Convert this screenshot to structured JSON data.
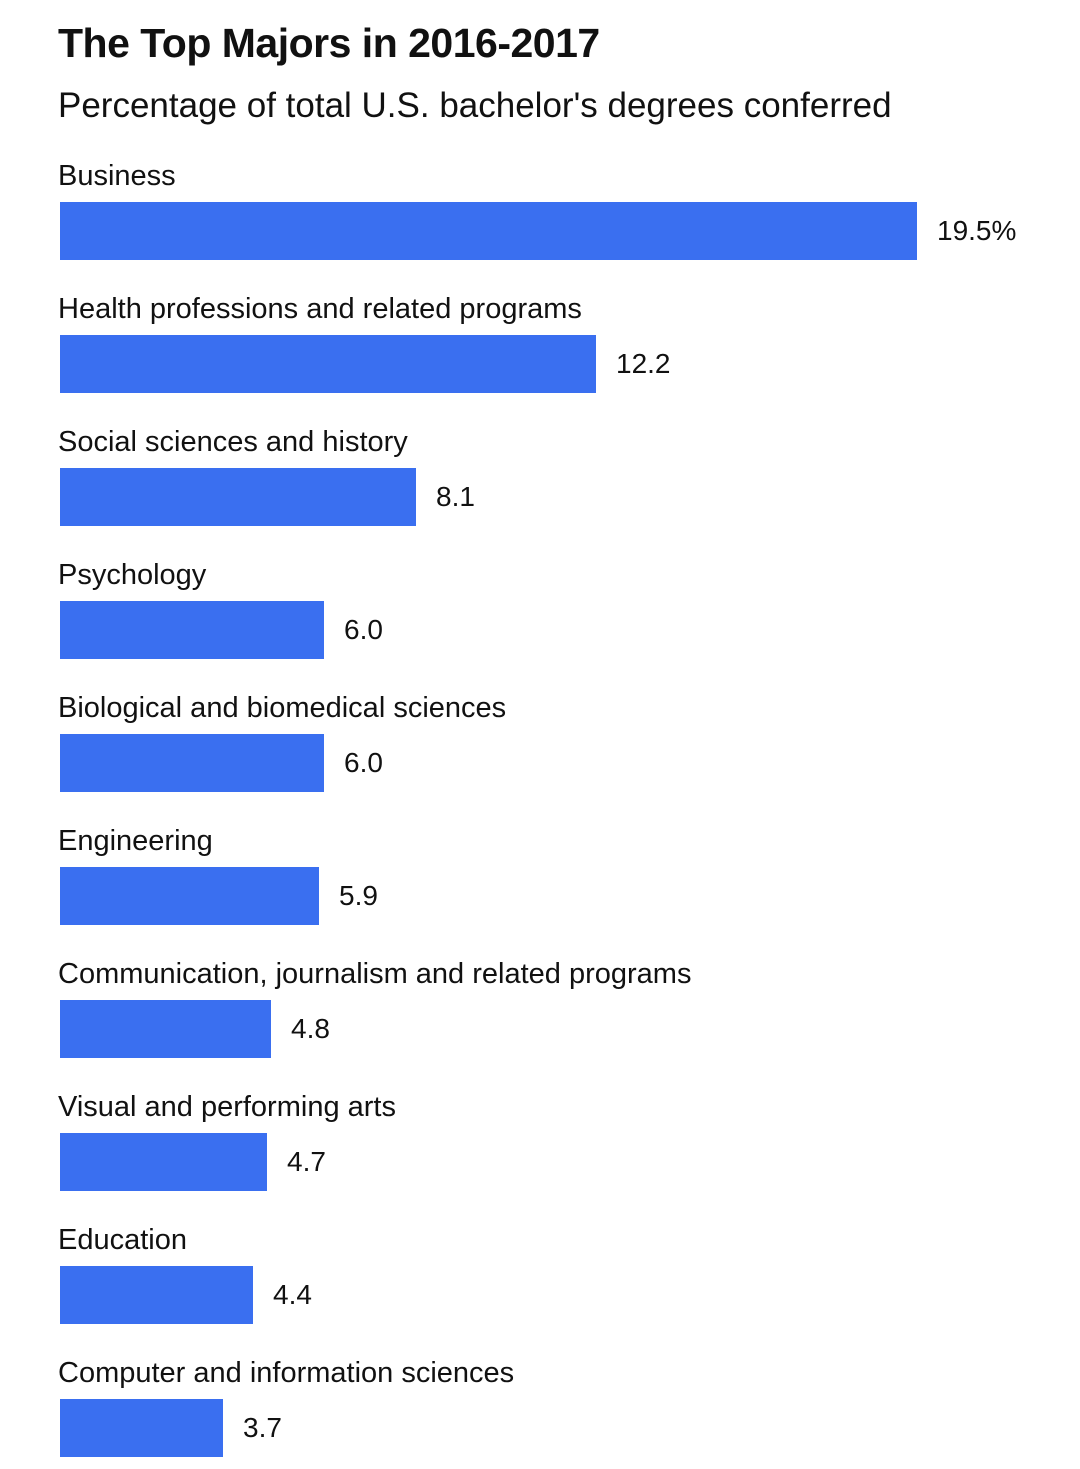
{
  "chart_data": {
    "type": "bar",
    "orientation": "horizontal",
    "title": "The Top Majors in 2016-2017",
    "subtitle": "Percentage of total U.S. bachelor's degrees conferred",
    "categories": [
      "Business",
      "Health professions and related programs",
      "Social sciences and history",
      "Psychology",
      "Biological and biomedical sciences",
      "Engineering",
      "Communication, journalism and related programs",
      "Visual and performing arts",
      "Education",
      "Computer and information sciences"
    ],
    "values": [
      19.5,
      12.2,
      8.1,
      6.0,
      6.0,
      5.9,
      4.8,
      4.7,
      4.4,
      3.7
    ],
    "value_labels": [
      "19.5%",
      "12.2",
      "8.1",
      "6.0",
      "6.0",
      "5.9",
      "4.8",
      "4.7",
      "4.4",
      "3.7"
    ],
    "unit": "%",
    "xlim": [
      0,
      19.5
    ],
    "grid": false,
    "legend": "none",
    "bar_color": "#3a6ff0"
  }
}
